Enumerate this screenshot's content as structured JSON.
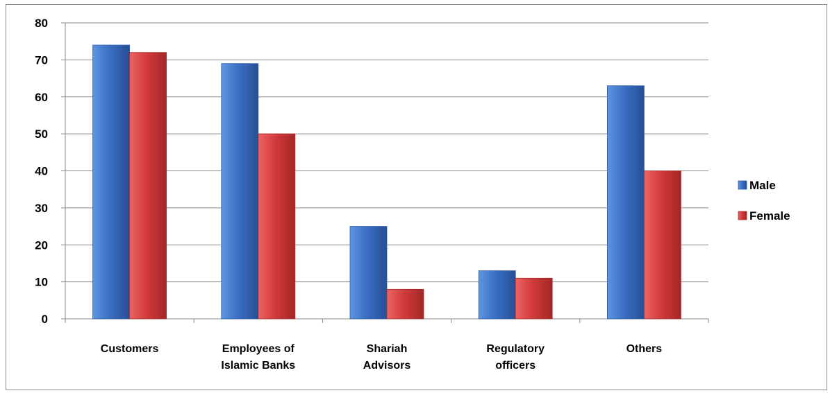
{
  "chart_data": {
    "type": "bar",
    "categories": [
      [
        "Customers"
      ],
      [
        "Employees of",
        "Islamic Banks"
      ],
      [
        "Shariah",
        "Advisors"
      ],
      [
        "Regulatory",
        "officers"
      ],
      [
        "Others"
      ]
    ],
    "series": [
      {
        "name": "Male",
        "values": [
          74,
          69,
          25,
          13,
          63
        ],
        "color": "#3a6fc4"
      },
      {
        "name": "Female",
        "values": [
          72,
          50,
          8,
          11,
          40
        ],
        "color": "#d23b3b"
      }
    ],
    "ylim": [
      0,
      80
    ],
    "yticks": [
      0,
      10,
      20,
      30,
      40,
      50,
      60,
      70,
      80
    ],
    "grid": true,
    "legend_position": "right",
    "title": "",
    "xlabel": "",
    "ylabel": ""
  }
}
